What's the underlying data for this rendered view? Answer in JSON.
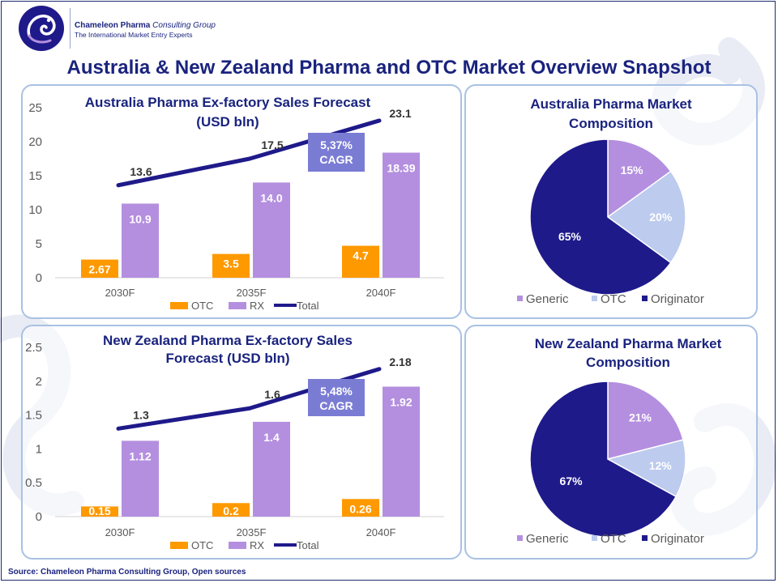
{
  "brand": {
    "name": "Chameleon Pharma",
    "name_italic": "Consulting Group",
    "tagline": "The International Market Entry Experts"
  },
  "main_title": "Australia & New Zealand Pharma and OTC Market Overview Snapshot",
  "source": "Source: Chameleon Pharma Consulting Group, Open sources",
  "colors": {
    "otc_bar": "#ff9900",
    "rx_bar": "#b48fdf",
    "total_line": "#1f1a8a",
    "cagr_box": "#7a7cd4",
    "pie_generic": "#b48fdf",
    "pie_otc": "#bccbee",
    "pie_originator": "#1f1a8a",
    "title": "#1a237e"
  },
  "chart_data": [
    {
      "id": "au-forecast",
      "type": "bar",
      "title_lines": [
        "Australia Pharma Ex-factory Sales Forecast",
        "(USD bln)"
      ],
      "categories": [
        "2030F",
        "2035F",
        "2040F"
      ],
      "yticks": [
        "0",
        "5",
        "10",
        "15",
        "20",
        "25"
      ],
      "ylim": [
        0,
        25
      ],
      "series": [
        {
          "name": "OTC",
          "kind": "bar",
          "values": [
            2.67,
            3.5,
            4.7
          ],
          "labels": [
            "2.67",
            "3.5",
            "4.7"
          ]
        },
        {
          "name": "RX",
          "kind": "bar",
          "values": [
            10.9,
            14.0,
            18.39
          ],
          "labels": [
            "10.9",
            "14.0",
            "18.39"
          ]
        },
        {
          "name": "Total",
          "kind": "line",
          "values": [
            13.6,
            17.5,
            23.1
          ],
          "labels": [
            "13.6",
            "17.5",
            "23.1"
          ]
        }
      ],
      "cagr": [
        "5,37%",
        "CAGR"
      ],
      "legend": [
        "OTC",
        "RX",
        "Total"
      ]
    },
    {
      "id": "nz-forecast",
      "type": "bar",
      "title_lines": [
        "New Zealand Pharma Ex-factory Sales",
        "Forecast (USD bln)"
      ],
      "categories": [
        "2030F",
        "2035F",
        "2040F"
      ],
      "yticks": [
        "0",
        "0.5",
        "1",
        "1.5",
        "2",
        "2.5"
      ],
      "ylim": [
        0,
        2.5
      ],
      "series": [
        {
          "name": "OTC",
          "kind": "bar",
          "values": [
            0.15,
            0.2,
            0.26
          ],
          "labels": [
            "0.15",
            "0.2",
            "0.26"
          ]
        },
        {
          "name": "RX",
          "kind": "bar",
          "values": [
            1.12,
            1.4,
            1.92
          ],
          "labels": [
            "1.12",
            "1.4",
            "1.92"
          ]
        },
        {
          "name": "Total",
          "kind": "line",
          "values": [
            1.3,
            1.6,
            2.18
          ],
          "labels": [
            "1.3",
            "1.6",
            "2.18"
          ]
        }
      ],
      "cagr": [
        "5,48%",
        "CAGR"
      ],
      "legend": [
        "OTC",
        "RX",
        "Total"
      ]
    },
    {
      "id": "au-composition",
      "type": "pie",
      "title_lines": [
        "Australia Pharma Market",
        "Composition"
      ],
      "slices": [
        {
          "name": "Generic",
          "value": 15,
          "label": "15%"
        },
        {
          "name": "OTC",
          "value": 20,
          "label": "20%"
        },
        {
          "name": "Originator",
          "value": 65,
          "label": "65%"
        }
      ],
      "legend": [
        "Generic",
        "OTC",
        "Originator"
      ]
    },
    {
      "id": "nz-composition",
      "type": "pie",
      "title_lines": [
        "New Zealand Pharma Market",
        "Composition"
      ],
      "slices": [
        {
          "name": "Generic",
          "value": 21,
          "label": "21%"
        },
        {
          "name": "OTC",
          "value": 12,
          "label": "12%"
        },
        {
          "name": "Originator",
          "value": 67,
          "label": "67%"
        }
      ],
      "legend": [
        "Generic",
        "OTC",
        "Originator"
      ]
    }
  ]
}
